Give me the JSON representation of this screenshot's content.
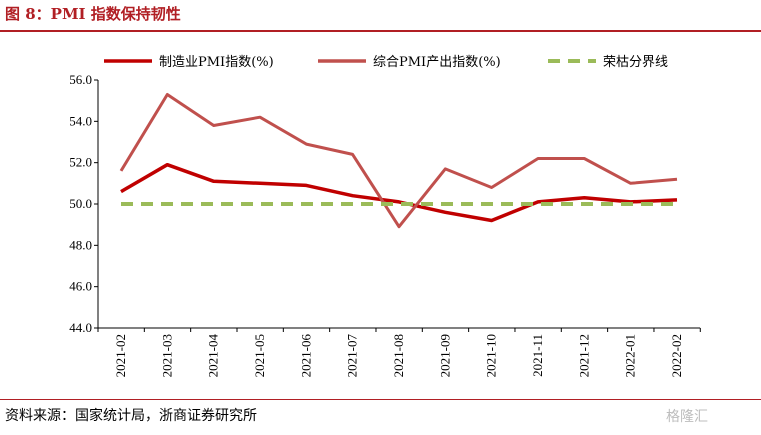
{
  "figure": {
    "title": "图 8：PMI 指数保持韧性",
    "source": "资料来源：国家统计局，浙商证券研究所",
    "watermark": "格隆汇"
  },
  "chart_data": {
    "type": "line",
    "categories": [
      "2021-02",
      "2021-03",
      "2021-04",
      "2021-05",
      "2021-06",
      "2021-07",
      "2021-08",
      "2021-09",
      "2021-10",
      "2021-11",
      "2021-12",
      "2022-01",
      "2022-02"
    ],
    "series": [
      {
        "name": "制造业PMI指数(%)",
        "values": [
          50.6,
          51.9,
          51.1,
          51.0,
          50.9,
          50.4,
          50.1,
          49.6,
          49.2,
          50.1,
          50.3,
          50.1,
          50.2
        ],
        "color": "#c00000",
        "style": "solid"
      },
      {
        "name": "综合PMI产出指数(%)",
        "values": [
          51.6,
          55.3,
          53.8,
          54.2,
          52.9,
          52.4,
          48.9,
          51.7,
          50.8,
          52.2,
          52.2,
          51.0,
          51.2
        ],
        "color": "#c0504d",
        "style": "solid"
      },
      {
        "name": "荣枯分界线",
        "values": [
          50,
          50,
          50,
          50,
          50,
          50,
          50,
          50,
          50,
          50,
          50,
          50,
          50
        ],
        "color": "#9bbb59",
        "style": "dashed"
      }
    ],
    "ylim": [
      44.0,
      56.0
    ],
    "yticks": [
      "44.0",
      "46.0",
      "48.0",
      "50.0",
      "52.0",
      "54.0",
      "56.0"
    ],
    "grid": false,
    "legend": "top"
  }
}
